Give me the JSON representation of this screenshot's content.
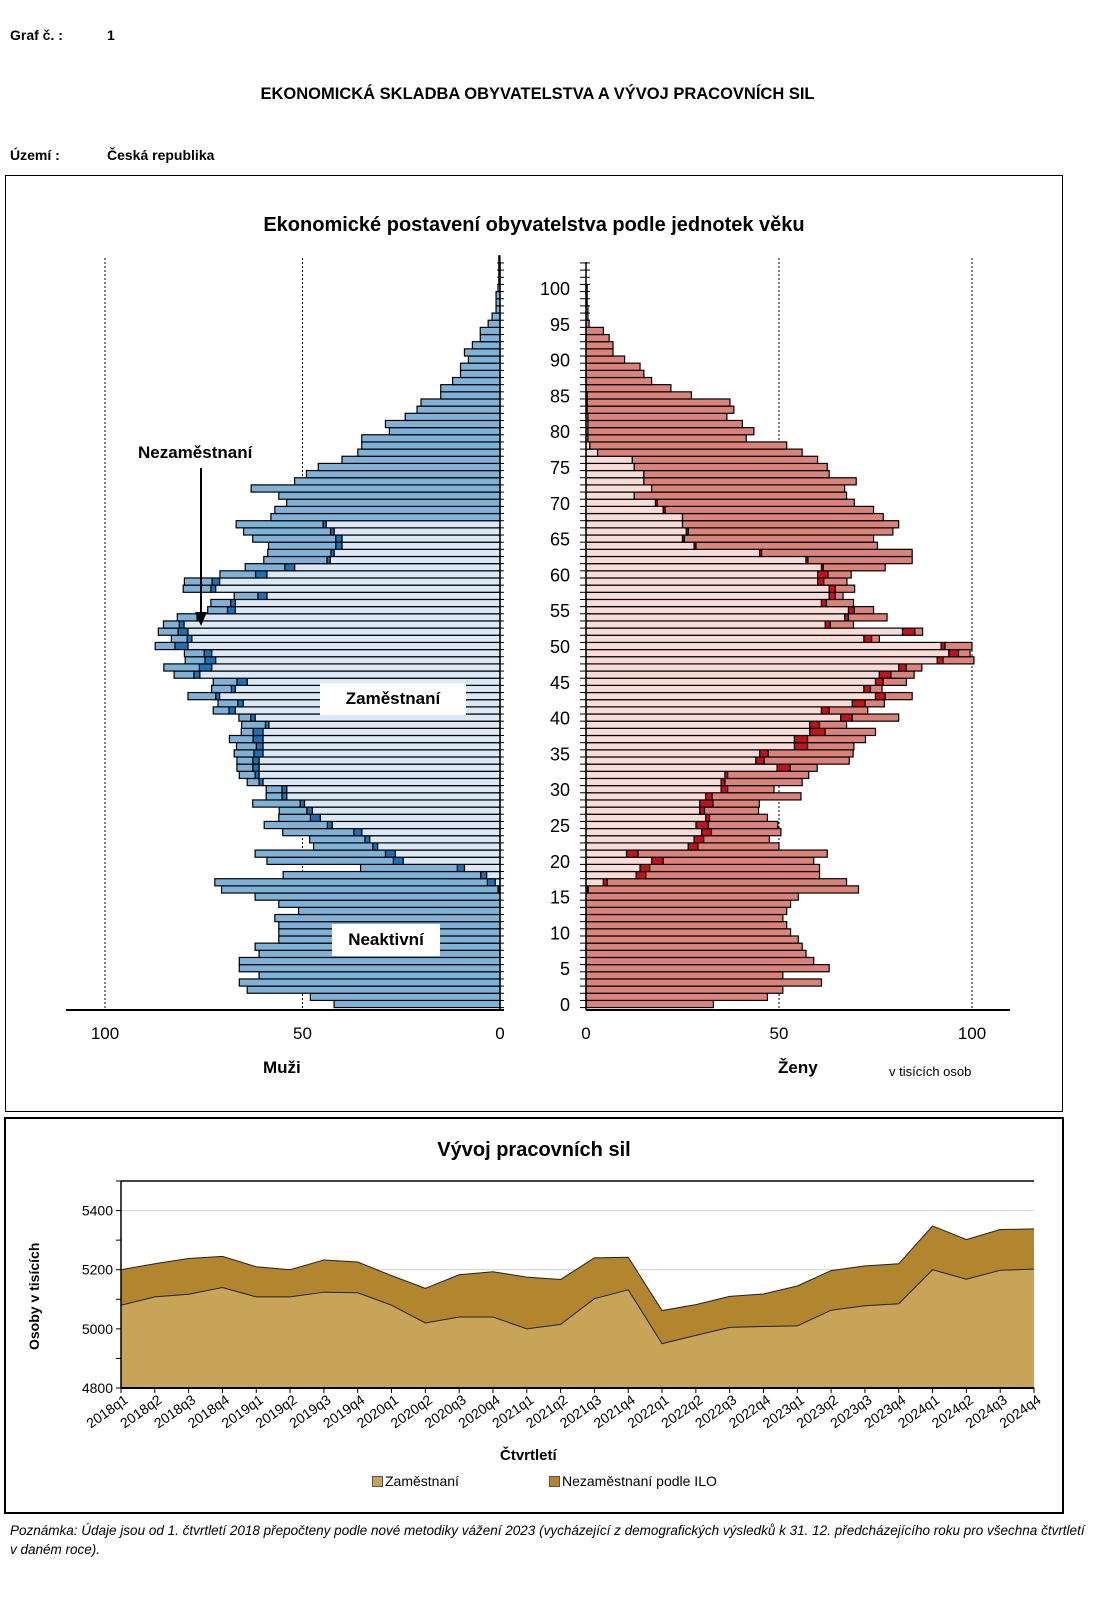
{
  "header": {
    "graf_label": "Graf č. :",
    "graf_number": "1",
    "main_title": "EKONOMICKÁ SKLADBA OBYVATELSTVA A VÝVOJ PRACOVNÍCH SIL",
    "territory_label": "Území :",
    "territory_value": "Česká republika"
  },
  "footnote": "Poznámka: Údaje jsou od 1. čtvrtletí 2018 přepočteny podle nové metodiky vážení 2023 (vycházející z demografických výsledků k 31. 12. předcházejícího roku pro všechna čtvrtletí v daném roce).",
  "colors": {
    "male_employed": "#dbe8f6",
    "male_unemployed": "#1f6fb4",
    "male_inactive": "#80b2d8",
    "female_employed": "#f7dcd7",
    "female_unemployed": "#c0141c",
    "female_inactive": "#d9837a",
    "lf_employed": "#c7a457",
    "lf_unemployed": "#b2852f"
  },
  "chart_data": [
    {
      "type": "bar",
      "subtype": "population-pyramid-stacked",
      "title": "Ekonomické postavení obyvatelstva podle jednotek věku",
      "units_label": "v tisících  osob",
      "left_label": "Muži",
      "right_label": "Ženy",
      "annotations": {
        "unemployed": "Nezaměstnaní",
        "employed": "Zaměstnaní",
        "inactive": "Neaktivní"
      },
      "xlim": [
        0,
        110
      ],
      "x_ticks": [
        0,
        50,
        100
      ],
      "x_tick_labels_male": [
        "100",
        "50",
        "0"
      ],
      "x_tick_labels_female": [
        "0",
        "50",
        "100"
      ],
      "age_ticks": [
        0,
        5,
        10,
        15,
        20,
        25,
        30,
        35,
        40,
        45,
        50,
        55,
        60,
        65,
        70,
        75,
        80,
        85,
        90,
        95,
        100
      ],
      "age_tick_labels": [
        "0",
        "5",
        "10",
        "15",
        "20",
        "25",
        "30",
        "35",
        "40",
        "45",
        "50",
        "55",
        "60",
        "65",
        "70",
        "75",
        "80",
        "85",
        "90",
        "95",
        "100"
      ],
      "series_order": [
        "employed",
        "unemployed",
        "inactive"
      ],
      "male": {
        "ages": [
          0,
          1,
          2,
          3,
          4,
          5,
          6,
          7,
          8,
          9,
          10,
          11,
          12,
          13,
          14,
          15,
          16,
          17,
          18,
          19,
          20,
          21,
          22,
          23,
          24,
          25,
          26,
          27,
          28,
          29,
          30,
          31,
          32,
          33,
          34,
          35,
          36,
          37,
          38,
          39,
          40,
          41,
          42,
          43,
          44,
          45,
          46,
          47,
          48,
          49,
          50,
          51,
          52,
          53,
          54,
          55,
          56,
          57,
          58,
          59,
          60,
          61,
          62,
          63,
          64,
          65,
          66,
          67,
          68,
          69,
          70,
          71,
          72,
          73,
          74,
          75,
          76,
          77,
          78,
          79,
          80,
          81,
          82,
          83,
          84,
          85,
          86,
          87,
          88,
          89,
          90,
          91,
          92,
          93,
          94,
          95,
          96,
          97,
          98,
          99,
          100,
          101,
          102,
          103,
          104
        ],
        "employed": [
          0,
          0,
          0,
          0,
          0,
          0,
          0,
          0,
          0,
          0,
          0,
          0,
          0,
          0,
          0,
          0,
          0.2,
          1.2,
          3.4,
          9,
          24.5,
          26.5,
          31,
          33,
          35,
          42.5,
          45.5,
          47.5,
          49.5,
          54,
          54,
          60,
          61,
          61,
          61,
          60,
          60,
          60,
          60,
          58.5,
          62,
          67,
          65,
          71,
          67,
          64,
          76,
          73,
          72,
          73,
          79,
          78,
          79,
          80,
          76,
          67,
          67,
          59,
          72,
          71,
          59,
          52,
          43,
          42,
          40,
          40,
          42,
          44,
          0,
          0,
          0,
          0,
          0,
          0,
          0,
          0,
          0,
          0,
          0,
          0,
          0,
          0,
          0,
          0,
          0,
          0,
          0,
          0,
          0,
          0,
          0,
          0,
          0,
          0,
          0,
          0,
          0,
          0,
          0,
          0,
          0,
          0,
          0,
          0,
          0
        ],
        "unemployed": [
          0,
          0,
          0,
          0,
          0,
          0,
          0,
          0,
          0,
          0,
          0,
          0,
          0,
          0,
          0,
          0,
          0.3,
          2,
          1.5,
          1.8,
          2.5,
          2.5,
          1.2,
          1.2,
          2,
          1.2,
          2.5,
          1.4,
          1.1,
          1.2,
          1.2,
          1.0,
          1.0,
          1.6,
          1.6,
          2.3,
          1.7,
          2.5,
          2.5,
          0.9,
          1.1,
          1.6,
          1.4,
          1.0,
          1.0,
          2.6,
          1.5,
          3.1,
          2.7,
          1.9,
          3.3,
          1.2,
          2.5,
          1.2,
          0.7,
          2.0,
          1.2,
          2.3,
          1.2,
          1.9,
          2.9,
          2.5,
          0.8,
          0.8,
          1.6,
          1.6,
          0.9,
          0.8,
          0,
          0,
          0,
          0,
          0,
          0,
          0,
          0,
          0,
          0,
          0,
          0,
          0,
          0,
          0,
          0,
          0,
          0,
          0,
          0,
          0,
          0,
          0,
          0,
          0,
          0,
          0,
          0,
          0,
          0,
          0,
          0,
          0,
          0,
          0,
          0,
          0
        ],
        "inactive": [
          42,
          48,
          64,
          66,
          61,
          66,
          66,
          61,
          62,
          56,
          56,
          56,
          57,
          51,
          56,
          62,
          70,
          69,
          50,
          24.5,
          32,
          33,
          15,
          14,
          18,
          16,
          8,
          7,
          12,
          4,
          4,
          3,
          4,
          4,
          4,
          5,
          5,
          6,
          3,
          6,
          3,
          4,
          5,
          7,
          5,
          6,
          5,
          9,
          5,
          5,
          5,
          4,
          5,
          4,
          5,
          5,
          5,
          6,
          7,
          7,
          9,
          10,
          16,
          16,
          17,
          21,
          22,
          22,
          58,
          57,
          54,
          56,
          63,
          52,
          49,
          46,
          40,
          36,
          35,
          35,
          28,
          29,
          24,
          21,
          20,
          15,
          15,
          12,
          10,
          10,
          8,
          9,
          7,
          5,
          5,
          3,
          2,
          1,
          1,
          1,
          0.5,
          0.3,
          0.3,
          0.3,
          0.3
        ]
      },
      "female": {
        "ages": [
          0,
          1,
          2,
          3,
          4,
          5,
          6,
          7,
          8,
          9,
          10,
          11,
          12,
          13,
          14,
          15,
          16,
          17,
          18,
          19,
          20,
          21,
          22,
          23,
          24,
          25,
          26,
          27,
          28,
          29,
          30,
          31,
          32,
          33,
          34,
          35,
          36,
          37,
          38,
          39,
          40,
          41,
          42,
          43,
          44,
          45,
          46,
          47,
          48,
          49,
          50,
          51,
          52,
          53,
          54,
          55,
          56,
          57,
          58,
          59,
          60,
          61,
          62,
          63,
          64,
          65,
          66,
          67,
          68,
          69,
          70,
          71,
          72,
          73,
          74,
          75,
          76,
          77,
          78,
          79,
          80,
          81,
          82,
          83,
          84,
          85,
          86,
          87,
          88,
          89,
          90,
          91,
          92,
          93,
          94,
          95,
          96,
          97,
          98,
          99,
          100,
          101,
          102,
          103,
          104
        ],
        "employed": [
          0,
          0,
          0,
          0,
          0,
          0,
          0,
          0,
          0,
          0,
          0,
          0,
          0,
          0,
          0,
          0,
          0.3,
          4.5,
          13,
          14,
          17,
          10.5,
          26.5,
          28,
          30,
          28.5,
          31,
          29.5,
          29.5,
          31,
          35,
          35,
          36,
          49.5,
          44,
          45,
          54,
          54,
          58,
          58,
          66,
          61,
          69,
          75,
          72,
          75,
          76,
          81,
          91,
          94,
          92,
          72,
          82,
          62,
          67,
          68,
          61,
          63,
          63,
          60,
          60,
          61,
          57,
          45,
          28,
          25,
          26,
          25,
          25,
          20,
          18,
          12.5,
          17,
          15,
          15,
          12.5,
          12,
          3,
          1,
          0.5,
          0.5,
          0.5,
          0.5,
          0.3,
          0.3,
          0.3,
          0,
          0,
          0,
          0,
          0,
          0,
          0,
          0,
          0,
          0,
          0,
          0,
          0,
          0,
          0,
          0,
          0,
          0,
          0,
          0
        ],
        "unemployed": [
          0,
          0,
          0,
          0,
          0,
          0,
          0,
          0,
          0,
          0,
          0,
          0,
          0,
          0,
          0,
          0,
          0.3,
          1,
          2.5,
          2.5,
          3,
          3,
          2.5,
          2.5,
          2.5,
          3.2,
          1.0,
          1.2,
          3.4,
          1.7,
          1.7,
          1.0,
          0.7,
          3.4,
          2.2,
          2.2,
          3.4,
          3.4,
          4.0,
          2.5,
          3.0,
          2.0,
          3.3,
          2.5,
          1.7,
          2.0,
          3.0,
          2.0,
          1.5,
          2.5,
          1.0,
          2.0,
          3.2,
          1.3,
          1.0,
          1.5,
          1.3,
          1.6,
          1.6,
          1.6,
          2.7,
          0.5,
          0.5,
          0.5,
          0.5,
          0.5,
          0.5,
          0,
          0,
          0.5,
          0.5,
          0,
          0,
          0,
          0,
          0,
          0,
          0,
          0,
          0,
          0,
          0,
          0,
          0,
          0,
          0,
          0,
          0,
          0,
          0,
          0,
          0,
          0,
          0,
          0,
          0,
          0,
          0,
          0,
          0,
          0,
          0,
          0,
          0,
          0
        ],
        "inactive": [
          33,
          47,
          51,
          61,
          51,
          63,
          59,
          57,
          56,
          55,
          53,
          52,
          51,
          52,
          53,
          55,
          70,
          62,
          45,
          44,
          39,
          49,
          21,
          17,
          18,
          18,
          15,
          14,
          12,
          23,
          12,
          20,
          21,
          7,
          22,
          22,
          12,
          15,
          13,
          7,
          12,
          10,
          5,
          7,
          3,
          6,
          6,
          4,
          8,
          3,
          7,
          2,
          2,
          6,
          10,
          5,
          7,
          2,
          5,
          6,
          6,
          16,
          27,
          39,
          47,
          49,
          53,
          56,
          52,
          54,
          51,
          55,
          50,
          55,
          48,
          50,
          48,
          53,
          51,
          41,
          43,
          40,
          36,
          38,
          37,
          27,
          22,
          17,
          15,
          14,
          10,
          7,
          7,
          6,
          4.5,
          0.8,
          0.5,
          0.5,
          0.3,
          0.3,
          0.3,
          0,
          0,
          0,
          0
        ]
      }
    },
    {
      "type": "area",
      "stacked": true,
      "title": "Vývoj pracovních sil",
      "xlabel": "Čtvrtletí",
      "ylabel": "Osoby v tisících",
      "ylim": [
        4800,
        5500
      ],
      "y_ticks": [
        4800,
        5000,
        5200,
        5400
      ],
      "y_tick_labels": [
        "4800",
        "5000",
        "5200",
        "5400"
      ],
      "grid": true,
      "legend_position": "bottom",
      "categories": [
        "2018q1",
        "2018q2",
        "2018q3",
        "2018q4",
        "2019q1",
        "2019q2",
        "2019q3",
        "2019q4",
        "2020q1",
        "2020q2",
        "2020q3",
        "2020q4",
        "2021q1",
        "2021q2",
        "2021q3",
        "2021q4",
        "2022q1",
        "2022q2",
        "2022q3",
        "2022q4",
        "2023q1",
        "2023q2",
        "2023q3",
        "2023q4",
        "2024q1",
        "2024q2",
        "2024q3",
        "2024q4"
      ],
      "series": [
        {
          "name": "Zaměstnaní",
          "values": [
            5080,
            5108,
            5117,
            5140,
            5108,
            5108,
            5124,
            5122,
            5080,
            5020,
            5040,
            5040,
            5000,
            5015,
            5102,
            5132,
            4950,
            4978,
            5005,
            5008,
            5010,
            5063,
            5078,
            5085,
            5200,
            5168,
            5198,
            5202
          ]
        },
        {
          "name": "Nezaměstnaní podle ILO",
          "values": [
            120,
            112,
            121,
            105,
            102,
            92,
            109,
            104,
            100,
            117,
            143,
            153,
            175,
            152,
            138,
            110,
            112,
            104,
            105,
            110,
            135,
            134,
            135,
            135,
            148,
            134,
            138,
            136
          ]
        }
      ]
    }
  ]
}
